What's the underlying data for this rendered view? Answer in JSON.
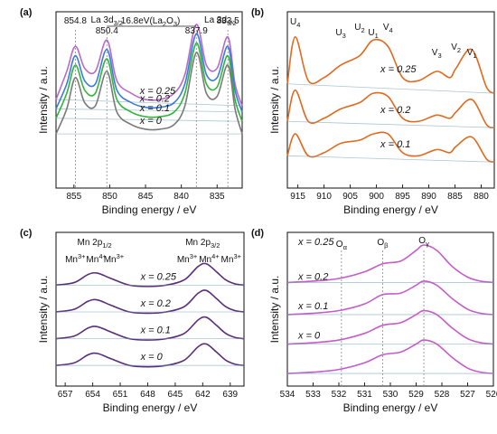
{
  "chart_data": [
    {
      "panel": "(a)",
      "type": "line",
      "xlabel": "Binding energy / eV",
      "ylabel": "Intensity / a.u.",
      "xlim": [
        857.5,
        831.5
      ],
      "xticks": [
        855,
        850,
        845,
        840,
        835
      ],
      "peak_labels": [
        {
          "text": "854.8",
          "x": 854.8
        },
        {
          "text": "850.4",
          "x": 850.4
        },
        {
          "text": "837.9",
          "x": 837.9
        },
        {
          "text": "833.5",
          "x": 833.5
        }
      ],
      "annotations": [
        {
          "text": "La 3d3/2",
          "x": 850.4
        },
        {
          "text": "La 3d5/2",
          "x": 833.8
        },
        {
          "text": "16.8eV(La2O3)",
          "x": 844.3
        }
      ],
      "series": [
        {
          "name": "x = 0.25",
          "color": "#b96ac9",
          "x": [
            857.5,
            856,
            854.8,
            853.5,
            852,
            850.4,
            849,
            847,
            845,
            843,
            841,
            839.5,
            837.9,
            836.5,
            835,
            833.5,
            832.5,
            831.5
          ],
          "y": [
            0.52,
            0.7,
            0.86,
            0.72,
            0.7,
            0.9,
            0.64,
            0.56,
            0.52,
            0.52,
            0.56,
            0.68,
            1.0,
            0.74,
            0.72,
            0.92,
            0.62,
            0.48
          ]
        },
        {
          "name": "x = 0.2",
          "color": "#3b7bd9",
          "x": [
            857.5,
            856,
            854.8,
            853.5,
            852,
            850.4,
            849,
            847,
            845,
            843,
            841,
            839.5,
            837.9,
            836.5,
            835,
            833.5,
            832.5,
            831.5
          ],
          "y": [
            0.46,
            0.62,
            0.8,
            0.64,
            0.62,
            0.84,
            0.58,
            0.5,
            0.47,
            0.47,
            0.5,
            0.62,
            0.94,
            0.68,
            0.66,
            0.86,
            0.58,
            0.44
          ]
        },
        {
          "name": "x = 0.1",
          "color": "#2fb53a",
          "x": [
            857.5,
            856,
            854.8,
            853.5,
            852,
            850.4,
            849,
            847,
            845,
            843,
            841,
            839.5,
            837.9,
            836.5,
            835,
            833.5,
            832.5,
            831.5
          ],
          "y": [
            0.4,
            0.56,
            0.74,
            0.58,
            0.56,
            0.78,
            0.52,
            0.44,
            0.41,
            0.41,
            0.44,
            0.56,
            0.88,
            0.62,
            0.6,
            0.8,
            0.52,
            0.38
          ]
        },
        {
          "name": "x = 0",
          "color": "#7a7a7a",
          "x": [
            857.5,
            856,
            854.8,
            853.5,
            852,
            850.4,
            849,
            847,
            845,
            843,
            841,
            839.5,
            837.9,
            836.5,
            835,
            833.5,
            832.5,
            831.5
          ],
          "y": [
            0.3,
            0.46,
            0.66,
            0.5,
            0.48,
            0.7,
            0.44,
            0.36,
            0.33,
            0.33,
            0.36,
            0.48,
            0.82,
            0.56,
            0.54,
            0.74,
            0.46,
            0.3
          ]
        }
      ],
      "series_labels": [
        "x = 0.25",
        "x = 0.2",
        "x = 0.1",
        "x = 0"
      ]
    },
    {
      "panel": "(b)",
      "type": "line",
      "xlabel": "Binding energy / eV",
      "ylabel": "Intensity / a.u.",
      "xlim": [
        917,
        877.5
      ],
      "xticks": [
        915,
        910,
        905,
        900,
        895,
        890,
        885,
        880
      ],
      "component_labels": [
        {
          "text": "U4",
          "x": 915.5
        },
        {
          "text": "U3",
          "x": 906.8
        },
        {
          "text": "U2",
          "x": 903.2
        },
        {
          "text": "U1",
          "x": 900.6
        },
        {
          "text": "V4",
          "x": 897.8
        },
        {
          "text": "V3",
          "x": 888.5
        },
        {
          "text": "V2",
          "x": 884.8
        },
        {
          "text": "V1",
          "x": 881.8
        }
      ],
      "series_labels": [
        "x = 0.25",
        "x = 0.2",
        "x = 0.1"
      ],
      "series": [
        {
          "name": "x = 0.25",
          "color": "#e06a1e",
          "x": [
            917,
            915.5,
            913,
            910,
            906.8,
            903.2,
            900.6,
            897.8,
            895,
            892,
            888.5,
            886,
            884.8,
            881.8,
            879,
            877.5
          ],
          "y": [
            0.62,
            0.92,
            0.64,
            0.66,
            0.74,
            0.8,
            0.9,
            0.86,
            0.66,
            0.64,
            0.7,
            0.66,
            0.72,
            0.84,
            0.6,
            0.56
          ]
        },
        {
          "name": "x = 0.2",
          "color": "#e06a1e",
          "x": [
            917,
            915.5,
            913,
            910,
            906.8,
            903.2,
            900.6,
            897.8,
            895,
            892,
            888.5,
            886,
            884.8,
            881.8,
            879,
            877.5
          ],
          "y": [
            0.38,
            0.58,
            0.38,
            0.4,
            0.46,
            0.5,
            0.56,
            0.54,
            0.4,
            0.38,
            0.42,
            0.4,
            0.44,
            0.52,
            0.36,
            0.34
          ]
        },
        {
          "name": "x = 0.1",
          "color": "#e06a1e",
          "x": [
            917,
            915.5,
            913,
            910,
            906.8,
            903.2,
            900.6,
            897.8,
            895,
            892,
            888.5,
            886,
            884.8,
            881.8,
            879,
            877.5
          ],
          "y": [
            0.16,
            0.3,
            0.16,
            0.18,
            0.24,
            0.26,
            0.3,
            0.3,
            0.18,
            0.16,
            0.2,
            0.18,
            0.22,
            0.28,
            0.14,
            0.12
          ]
        }
      ]
    },
    {
      "panel": "(c)",
      "type": "line",
      "xlabel": "Binding energy / eV",
      "ylabel": "Intensity / a.u.",
      "xlim": [
        658,
        637.5
      ],
      "xticks": [
        657,
        654,
        651,
        648,
        645,
        642,
        639
      ],
      "annotations": [
        {
          "text": "Mn 2p1/2",
          "x": 653.8
        },
        {
          "text": "Mn 2p3/2",
          "x": 642.0
        },
        {
          "text": "Mn3+",
          "x": 655.9
        },
        {
          "text": "Mn4+",
          "x": 653.6
        },
        {
          "text": "Mn3+",
          "x": 651.7
        },
        {
          "text": "Mn3+",
          "x": 643.7
        },
        {
          "text": "Mn4+",
          "x": 641.3
        },
        {
          "text": "Mn3+",
          "x": 638.9
        }
      ],
      "series_labels": [
        "x = 0.25",
        "x = 0.2",
        "x = 0.1",
        "x = 0"
      ],
      "series": [
        {
          "name": "x = 0.25",
          "color": "#5a2e7a",
          "x": [
            658,
            656,
            654.5,
            653.5,
            652,
            650,
            648,
            646,
            644,
            642.5,
            641.6,
            640.5,
            639.5,
            638.5,
            637.5
          ],
          "y": [
            0.7,
            0.72,
            0.78,
            0.79,
            0.75,
            0.7,
            0.69,
            0.7,
            0.74,
            0.84,
            0.86,
            0.8,
            0.74,
            0.71,
            0.7
          ]
        },
        {
          "name": "x = 0.2",
          "color": "#5a2e7a",
          "x": [
            658,
            656,
            654.5,
            653.5,
            652,
            650,
            648,
            646,
            644,
            642.5,
            641.6,
            640.5,
            639.5,
            638.5,
            637.5
          ],
          "y": [
            0.5,
            0.52,
            0.58,
            0.59,
            0.55,
            0.5,
            0.49,
            0.5,
            0.54,
            0.64,
            0.66,
            0.6,
            0.54,
            0.51,
            0.5
          ]
        },
        {
          "name": "x = 0.1",
          "color": "#5a2e7a",
          "x": [
            658,
            656,
            654.5,
            653.5,
            652,
            650,
            648,
            646,
            644,
            642.5,
            641.6,
            640.5,
            639.5,
            638.5,
            637.5
          ],
          "y": [
            0.3,
            0.32,
            0.38,
            0.39,
            0.35,
            0.3,
            0.29,
            0.3,
            0.34,
            0.44,
            0.46,
            0.4,
            0.34,
            0.31,
            0.3
          ]
        },
        {
          "name": "x = 0",
          "color": "#5a2e7a",
          "x": [
            658,
            656,
            654.5,
            653.5,
            652,
            650,
            648,
            646,
            644,
            642.5,
            641.6,
            640.5,
            639.5,
            638.5,
            637.5
          ],
          "y": [
            0.1,
            0.12,
            0.18,
            0.19,
            0.15,
            0.1,
            0.09,
            0.1,
            0.14,
            0.24,
            0.26,
            0.2,
            0.14,
            0.11,
            0.1
          ]
        }
      ]
    },
    {
      "panel": "(d)",
      "type": "line",
      "xlabel": "Binding energy / eV",
      "ylabel": "Intensity / a.u.",
      "xlim": [
        534,
        526
      ],
      "xticks": [
        534,
        533,
        532,
        531,
        530,
        529,
        528,
        527,
        526
      ],
      "annotations": [
        {
          "text": "Oα",
          "x": 531.9
        },
        {
          "text": "Oβ",
          "x": 530.3
        },
        {
          "text": "Oγ",
          "x": 528.7
        }
      ],
      "series_labels": [
        "x = 0.25",
        "x = 0.2",
        "x = 0.1",
        "x = 0"
      ],
      "series": [
        {
          "name": "x = 0.25",
          "color": "#c45dc9",
          "x": [
            534,
            533,
            532,
            531,
            530.3,
            529.6,
            529.0,
            528.7,
            528.2,
            527.6,
            527,
            526.5,
            526
          ],
          "y": [
            0.72,
            0.73,
            0.75,
            0.8,
            0.86,
            0.88,
            0.96,
            1.0,
            0.96,
            0.84,
            0.76,
            0.73,
            0.72
          ]
        },
        {
          "name": "x = 0.2",
          "color": "#c45dc9",
          "x": [
            534,
            533,
            532,
            531,
            530.3,
            529.6,
            529.0,
            528.7,
            528.2,
            527.6,
            527,
            526.5,
            526
          ],
          "y": [
            0.48,
            0.49,
            0.51,
            0.56,
            0.63,
            0.64,
            0.7,
            0.73,
            0.7,
            0.6,
            0.52,
            0.49,
            0.48
          ]
        },
        {
          "name": "x = 0.1",
          "color": "#c45dc9",
          "x": [
            534,
            533,
            532,
            531,
            530.3,
            529.6,
            529.0,
            528.7,
            528.2,
            527.6,
            527,
            526.5,
            526
          ],
          "y": [
            0.26,
            0.27,
            0.29,
            0.34,
            0.4,
            0.42,
            0.48,
            0.51,
            0.48,
            0.38,
            0.3,
            0.27,
            0.26
          ]
        },
        {
          "name": "x = 0",
          "color": "#c45dc9",
          "x": [
            534,
            533,
            532,
            531,
            530.3,
            529.6,
            529.0,
            528.7,
            528.2,
            527.6,
            527,
            526.5,
            526
          ],
          "y": [
            0.04,
            0.05,
            0.07,
            0.12,
            0.18,
            0.2,
            0.26,
            0.29,
            0.26,
            0.16,
            0.08,
            0.05,
            0.04
          ]
        }
      ]
    }
  ]
}
